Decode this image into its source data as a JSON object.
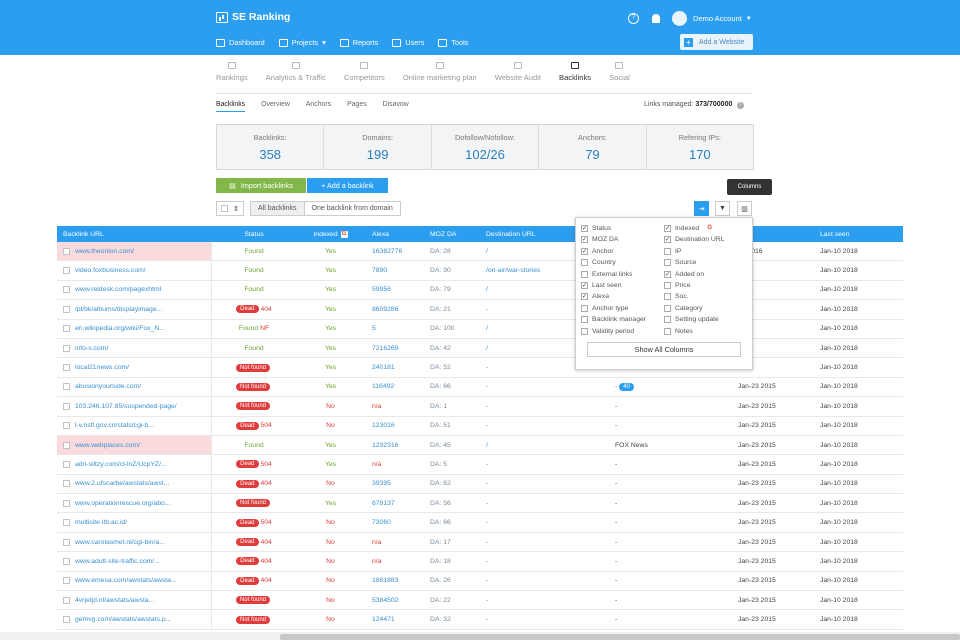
{
  "app": {
    "name": "SE Ranking"
  },
  "header": {
    "help": "?",
    "account": "Demo Account",
    "nav": [
      {
        "label": "Dashboard"
      },
      {
        "label": "Projects"
      },
      {
        "label": "Reports"
      },
      {
        "label": "Users"
      },
      {
        "label": "Tools"
      }
    ],
    "add_website": "Add a Website"
  },
  "tabs": [
    {
      "label": "Rankings"
    },
    {
      "label": "Analytics & Traffic"
    },
    {
      "label": "Competitors"
    },
    {
      "label": "Online marketing plan"
    },
    {
      "label": "Website Audit"
    },
    {
      "label": "Backlinks",
      "active": true
    },
    {
      "label": "Social"
    }
  ],
  "subtabs": [
    {
      "label": "Backlinks",
      "active": true
    },
    {
      "label": "Overview"
    },
    {
      "label": "Anchors"
    },
    {
      "label": "Pages"
    },
    {
      "label": "Disavow"
    }
  ],
  "managed": {
    "label": "Links managed:",
    "value": "373/700000"
  },
  "stats": [
    {
      "label": "Backlinks:",
      "value": "358"
    },
    {
      "label": "Domains:",
      "value": "199"
    },
    {
      "label": "Dofollow/Nofollow:",
      "value": "102/26"
    },
    {
      "label": "Anchors:",
      "value": "79"
    },
    {
      "label": "Refering IPs:",
      "value": "170"
    }
  ],
  "actions": {
    "import": "Import backlinks",
    "add": "+ Add a backlink",
    "filter_all": "All backlinks",
    "filter_one": "One backlink from domain",
    "tooltip": "Columns"
  },
  "columns_menu": {
    "left": [
      {
        "label": "Status",
        "checked": true
      },
      {
        "label": "MOZ DA",
        "checked": true
      },
      {
        "label": "Anchor",
        "checked": true
      },
      {
        "label": "Country",
        "checked": false
      },
      {
        "label": "External links",
        "checked": false
      },
      {
        "label": "Last seen",
        "checked": true
      },
      {
        "label": "Alexa",
        "checked": true
      },
      {
        "label": "Anchor type",
        "checked": false
      },
      {
        "label": "Backlink manager",
        "checked": false
      },
      {
        "label": "Validity period",
        "checked": false
      }
    ],
    "right": [
      {
        "label": "Indexed",
        "checked": true
      },
      {
        "label": "Destination URL",
        "checked": true
      },
      {
        "label": "IP",
        "checked": false
      },
      {
        "label": "Source",
        "checked": false
      },
      {
        "label": "Added on",
        "checked": true
      },
      {
        "label": "Price",
        "checked": false
      },
      {
        "label": "Soc.",
        "checked": false
      },
      {
        "label": "Category",
        "checked": false
      },
      {
        "label": "Setting update",
        "checked": false
      },
      {
        "label": "Notes",
        "checked": false
      }
    ],
    "show_all": "Show All Columns"
  },
  "table": {
    "headers": {
      "url": "Backlink URL",
      "status": "Status",
      "indexed": "Indexed",
      "alexa": "Alexa",
      "moz": "MOZ DA",
      "dest": "Destination URL",
      "anchor": "",
      "added": "on ▾",
      "last": "Last seen"
    },
    "rows": [
      {
        "url": "www.theonion.com/",
        "status": "Found",
        "type": "found",
        "code": "",
        "idx": "Yes",
        "alexa": "16382776",
        "moz": "DA: 28",
        "dest": "/",
        "anchor": "",
        "added": "09 2016",
        "last": "Jan-10 2018",
        "hl": true
      },
      {
        "url": "video.foxbusiness.com/",
        "status": "Found",
        "type": "found",
        "code": "",
        "idx": "Yes",
        "alexa": "7890",
        "moz": "DA: 90",
        "dest": "/on-air/war-stories",
        "anchor": "",
        "added": "2015",
        "last": "Jan-10 2018"
      },
      {
        "url": "www.reldesk.com/pagexhtml",
        "status": "Found",
        "type": "found",
        "code": "",
        "idx": "Yes",
        "alexa": "59956",
        "moz": "DA: 79",
        "dest": "/",
        "anchor": "",
        "added": "2015",
        "last": "Jan-10 2018"
      },
      {
        "url": "/pl/bk/albums/displayimage...",
        "status": "Dead",
        "type": "dead",
        "code": "404",
        "idx": "Yes",
        "alexa": "8609286",
        "moz": "DA: 21",
        "dest": "-",
        "anchor": "",
        "added": "2015",
        "last": "Jan-10 2018"
      },
      {
        "url": "en.wikipedia.org/wiki/Fox_N...",
        "status": "Found",
        "type": "foundnf",
        "code": "NF",
        "idx": "Yes",
        "alexa": "5",
        "moz": "DA: 100",
        "dest": "/",
        "anchor": "",
        "added": "2015",
        "last": "Jan-10 2018"
      },
      {
        "url": "info-s.com/",
        "status": "Found",
        "type": "found",
        "code": "",
        "idx": "Yes",
        "alexa": "7216269",
        "moz": "DA: 42",
        "dest": "/",
        "anchor": "",
        "added": "2015",
        "last": "Jan-10 2018"
      },
      {
        "url": "local21news.com/",
        "status": "Not found",
        "type": "nf",
        "code": "",
        "idx": "Yes",
        "alexa": "240181",
        "moz": "DA: 52",
        "dest": "-",
        "anchor": "",
        "added": "2015",
        "last": "Jan-10 2018"
      },
      {
        "url": "abusionyourside.com/",
        "status": "Not found",
        "type": "nf",
        "code": "",
        "idx": "Yes",
        "alexa": "116492",
        "moz": "DA: 66",
        "dest": "-",
        "anchor": "- 40",
        "added": "Jan-23 2015",
        "last": "Jan-10 2018"
      },
      {
        "url": "103.246.107.85/suspended-page/",
        "status": "Not found",
        "type": "nf",
        "code": "",
        "idx": "No",
        "alexa": "n/a",
        "moz": "DA: 1",
        "dest": "-",
        "anchor": "-",
        "added": "Jan-23 2015",
        "last": "Jan-10 2018"
      },
      {
        "url": "l-v.nsfl.gov.cn/stats/cgi-b...",
        "status": "Dead",
        "type": "dead",
        "code": "504",
        "idx": "No",
        "alexa": "123016",
        "moz": "DA: 51",
        "dest": "-",
        "anchor": "-",
        "added": "Jan-23 2015",
        "last": "Jan-10 2018"
      },
      {
        "url": "www.webplaces.com/",
        "status": "Found",
        "type": "found",
        "code": "",
        "idx": "Yes",
        "alexa": "1232316",
        "moz": "DA: 45",
        "dest": "/",
        "anchor": "FOX News",
        "added": "Jan-23 2015",
        "last": "Jan-10 2018",
        "hl": true
      },
      {
        "url": "adri-siltzy.com/cl-lnZ/UcpYZ/...",
        "status": "Dead",
        "type": "dead",
        "code": "504",
        "idx": "Yes",
        "alexa": "n/a",
        "moz": "DA: 5",
        "dest": "-",
        "anchor": "-",
        "added": "Jan-23 2015",
        "last": "Jan-10 2018"
      },
      {
        "url": "www.2.ufscarbe/awstats/awst...",
        "status": "Dead",
        "type": "dead",
        "code": "404",
        "idx": "No",
        "alexa": "39395",
        "moz": "DA: 62",
        "dest": "-",
        "anchor": "-",
        "added": "Jan-23 2015",
        "last": "Jan-10 2018"
      },
      {
        "url": "www.operationrescue.org/abo...",
        "status": "Not found",
        "type": "nf",
        "code": "",
        "idx": "Yes",
        "alexa": "678137",
        "moz": "DA: 56",
        "dest": "-",
        "anchor": "-",
        "added": "Jan-23 2015",
        "last": "Jan-10 2018"
      },
      {
        "url": "multisite.itb.ac.id/",
        "status": "Dead",
        "type": "dead",
        "code": "504",
        "idx": "No",
        "alexa": "73060",
        "moz": "DA: 66",
        "dest": "-",
        "anchor": "-",
        "added": "Jan-23 2015",
        "last": "Jan-10 2018"
      },
      {
        "url": "www.carolasmet.nl/cgi-bin/a...",
        "status": "Dead",
        "type": "dead",
        "code": "404",
        "idx": "No",
        "alexa": "n/a",
        "moz": "DA: 17",
        "dest": "-",
        "anchor": "-",
        "added": "Jan-23 2015",
        "last": "Jan-10 2018"
      },
      {
        "url": "www.adult-site-traffic.com/...",
        "status": "Dead",
        "type": "dead",
        "code": "404",
        "idx": "No",
        "alexa": "n/a",
        "moz": "DA: 18",
        "dest": "-",
        "anchor": "-",
        "added": "Jan-23 2015",
        "last": "Jan-10 2018"
      },
      {
        "url": "www.emesa.com/awstats/awsta...",
        "status": "Dead",
        "type": "dead",
        "code": "404",
        "idx": "No",
        "alexa": "1881883",
        "moz": "DA: 26",
        "dest": "-",
        "anchor": "-",
        "added": "Jan-23 2015",
        "last": "Jan-10 2018"
      },
      {
        "url": "4vrjetjd.nl/awstats/awsta...",
        "status": "Not found",
        "type": "nf",
        "code": "",
        "idx": "No",
        "alexa": "5384502",
        "moz": "DA: 22",
        "dest": "-",
        "anchor": "-",
        "added": "Jan-23 2015",
        "last": "Jan-10 2018"
      },
      {
        "url": "gemvg.com/awstats/awstats.p...",
        "status": "Not found",
        "type": "nf",
        "code": "",
        "idx": "No",
        "alexa": "124471",
        "moz": "DA: 32",
        "dest": "-",
        "anchor": "-",
        "added": "Jan-23 2015",
        "last": "Jan-10 2018"
      }
    ]
  }
}
